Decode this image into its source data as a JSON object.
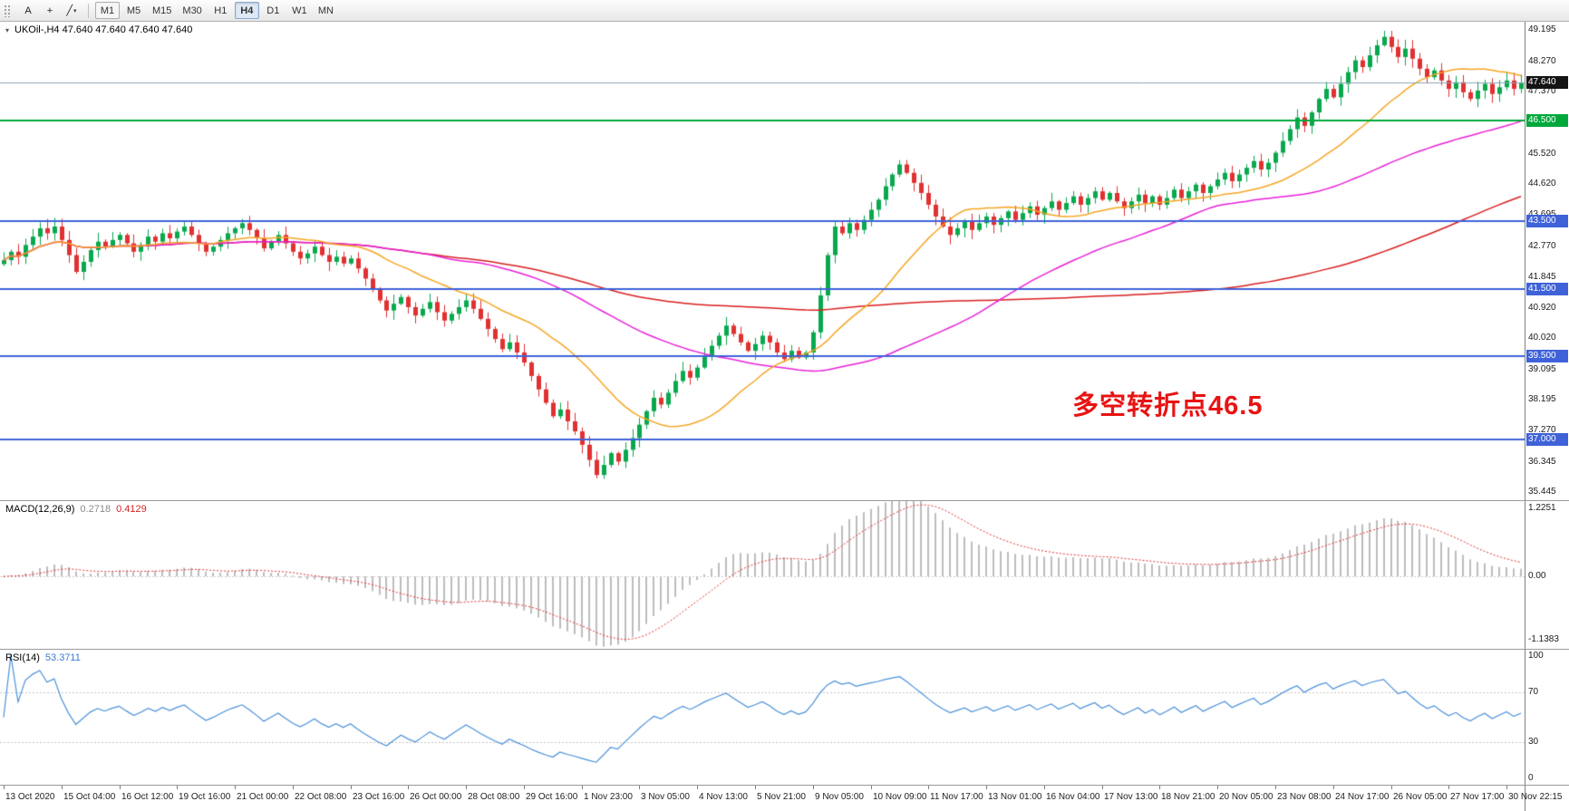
{
  "toolbar": {
    "tools": [
      {
        "name": "text-tool",
        "label": "A"
      },
      {
        "name": "crosshair-tool",
        "label": "+"
      },
      {
        "name": "line-studies-tool",
        "label": "╱",
        "caret": "▾"
      }
    ],
    "timeframes": [
      {
        "label": "M1",
        "active": false,
        "boxed": true
      },
      {
        "label": "M5",
        "active": false,
        "boxed": false
      },
      {
        "label": "M15",
        "active": false,
        "boxed": false
      },
      {
        "label": "M30",
        "active": false,
        "boxed": false
      },
      {
        "label": "H1",
        "active": false,
        "boxed": false
      },
      {
        "label": "H4",
        "active": true,
        "boxed": false
      },
      {
        "label": "D1",
        "active": false,
        "boxed": false
      },
      {
        "label": "W1",
        "active": false,
        "boxed": false
      },
      {
        "label": "MN",
        "active": false,
        "boxed": false
      }
    ]
  },
  "price_panel": {
    "collapse_icon": "▾",
    "title": "UKOil-,H4 47.640 47.640 47.640 47.640",
    "annotation": {
      "text": "多空转折点46.5",
      "color": "#e81313"
    },
    "axis_labels": [
      49.195,
      48.27,
      47.37,
      45.52,
      44.62,
      43.695,
      42.77,
      41.845,
      40.92,
      40.02,
      39.095,
      38.195,
      37.27,
      36.345,
      35.445
    ],
    "tags": [
      {
        "value": 47.64,
        "label": "47.640",
        "bg": "#141414",
        "fg": "#ffffff",
        "line_color": "#8fa3b5",
        "line_width": 1
      },
      {
        "value": 46.5,
        "label": "46.500",
        "bg": "#00a83c",
        "fg": "#ffffff",
        "line_color": "#00a83c",
        "line_width": 2
      },
      {
        "value": 43.5,
        "label": "43.500",
        "bg": "#3f62d9",
        "fg": "#ffffff",
        "line_color": "#3f62d9",
        "line_width": 2
      },
      {
        "value": 41.5,
        "label": "41.500",
        "bg": "#3f62d9",
        "fg": "#ffffff",
        "line_color": "#3f62d9",
        "line_width": 2
      },
      {
        "value": 39.5,
        "label": "39.500",
        "bg": "#3f62d9",
        "fg": "#ffffff",
        "line_color": "#3f62d9",
        "line_width": 2
      },
      {
        "value": 37.0,
        "label": "37.000",
        "bg": "#3f62d9",
        "fg": "#ffffff",
        "line_color": "#3f62d9",
        "line_width": 2
      }
    ]
  },
  "macd_panel": {
    "title": "MACD(12,26,9)",
    "value_main": "0.2718",
    "value_signal": "0.4129",
    "axis_labels": [
      {
        "v": 1.2251,
        "label": "1.2251"
      },
      {
        "v": 0,
        "label": "0.00"
      },
      {
        "v": -1.1383,
        "label": "-1.1383"
      }
    ],
    "domain": {
      "top": 1.35,
      "bottom": -1.3
    },
    "colors": {
      "histogram": "#bdbdbd",
      "signal": "#e03131"
    }
  },
  "rsi_panel": {
    "title": "RSI(14)",
    "value": "53.3711",
    "axis_labels": [
      {
        "v": 100,
        "label": "100"
      },
      {
        "v": 70,
        "label": "70"
      },
      {
        "v": 30,
        "label": "30"
      },
      {
        "v": 0,
        "label": "0"
      }
    ],
    "levels": [
      70,
      30
    ],
    "domain": {
      "top": 105,
      "bottom": -5
    },
    "colors": {
      "line": "#4a90d9",
      "level": "#c4c4c4"
    }
  },
  "chart_data": {
    "type": "candlestick",
    "symbol": "UKOil-",
    "timeframe": "H4",
    "title": "UKOil-,H4",
    "ylim": [
      35.2,
      49.45
    ],
    "x_labels": [
      "13 Oct 2020",
      "15 Oct 04:00",
      "16 Oct 12:00",
      "19 Oct 16:00",
      "21 Oct 00:00",
      "22 Oct 08:00",
      "23 Oct 16:00",
      "26 Oct 00:00",
      "28 Oct 08:00",
      "29 Oct 16:00",
      "1 Nov 23:00",
      "3 Nov 05:00",
      "4 Nov 13:00",
      "5 Nov 21:00",
      "9 Nov 05:00",
      "10 Nov 09:00",
      "11 Nov 17:00",
      "13 Nov 01:00",
      "16 Nov 04:00",
      "17 Nov 13:00",
      "18 Nov 21:00",
      "20 Nov 05:00",
      "23 Nov 08:00",
      "24 Nov 17:00",
      "26 Nov 05:00",
      "27 Nov 17:00",
      "30 Nov 22:15"
    ],
    "label_step": 8,
    "closes": [
      42.35,
      42.6,
      42.45,
      42.8,
      43.05,
      43.3,
      43.15,
      43.35,
      42.95,
      42.5,
      42.0,
      42.3,
      42.65,
      42.9,
      42.75,
      42.95,
      43.1,
      42.85,
      42.6,
      42.8,
      43.05,
      42.9,
      43.15,
      43.0,
      43.2,
      43.35,
      43.1,
      42.85,
      42.6,
      42.75,
      42.95,
      43.15,
      43.3,
      43.45,
      43.25,
      43.0,
      42.7,
      42.9,
      43.1,
      42.85,
      42.6,
      42.4,
      42.55,
      42.75,
      42.5,
      42.3,
      42.45,
      42.25,
      42.4,
      42.1,
      41.8,
      41.5,
      41.15,
      40.85,
      41.05,
      41.25,
      40.95,
      40.7,
      40.9,
      41.1,
      40.8,
      40.55,
      40.75,
      40.95,
      41.15,
      40.9,
      40.6,
      40.3,
      40.0,
      39.7,
      39.9,
      39.6,
      39.3,
      38.9,
      38.5,
      38.1,
      37.7,
      37.9,
      37.55,
      37.25,
      36.85,
      36.4,
      35.95,
      36.25,
      36.6,
      36.35,
      36.7,
      37.05,
      37.45,
      37.85,
      38.25,
      38.05,
      38.4,
      38.75,
      39.05,
      38.85,
      39.15,
      39.5,
      39.8,
      40.1,
      40.4,
      40.15,
      39.9,
      39.65,
      39.85,
      40.1,
      39.9,
      39.6,
      39.4,
      39.65,
      39.45,
      39.6,
      40.2,
      41.3,
      42.5,
      43.35,
      43.15,
      43.45,
      43.25,
      43.55,
      43.85,
      44.15,
      44.55,
      44.9,
      45.2,
      44.95,
      44.65,
      44.35,
      44.0,
      43.65,
      43.35,
      43.1,
      43.3,
      43.5,
      43.25,
      43.45,
      43.65,
      43.4,
      43.6,
      43.8,
      43.55,
      43.75,
      43.95,
      43.7,
      43.9,
      44.1,
      43.85,
      44.05,
      44.25,
      44.0,
      44.2,
      44.4,
      44.15,
      44.35,
      44.1,
      43.9,
      44.1,
      44.3,
      44.05,
      44.25,
      44.0,
      44.2,
      44.45,
      44.2,
      44.4,
      44.6,
      44.35,
      44.55,
      44.75,
      44.95,
      44.7,
      44.9,
      45.1,
      45.3,
      45.05,
      45.25,
      45.55,
      45.9,
      46.25,
      46.6,
      46.35,
      46.75,
      47.15,
      47.45,
      47.2,
      47.6,
      47.95,
      48.3,
      48.1,
      48.45,
      48.75,
      49.0,
      48.7,
      48.4,
      48.65,
      48.35,
      48.05,
      47.8,
      48.0,
      47.7,
      47.45,
      47.65,
      47.35,
      47.15,
      47.4,
      47.6,
      47.3,
      47.5,
      47.7,
      47.45,
      47.64
    ],
    "candle_colors": {
      "up": "#09a84e",
      "down": "#e03131"
    },
    "ma": {
      "orange": {
        "period": 20,
        "color": "#f5a623"
      },
      "magenta": {
        "period": 55,
        "color": "#e820d8"
      },
      "red": {
        "period": 120,
        "color": "#d81f1f"
      }
    },
    "hlines": [
      46.5,
      43.5,
      41.5,
      39.5,
      37.0
    ],
    "bid": 47.64,
    "macd": {
      "fast": 12,
      "slow": 26,
      "signal": 9,
      "value_main": 0.2718,
      "value_signal": 0.4129
    },
    "rsi": {
      "period": 14,
      "value": 53.3711
    }
  }
}
